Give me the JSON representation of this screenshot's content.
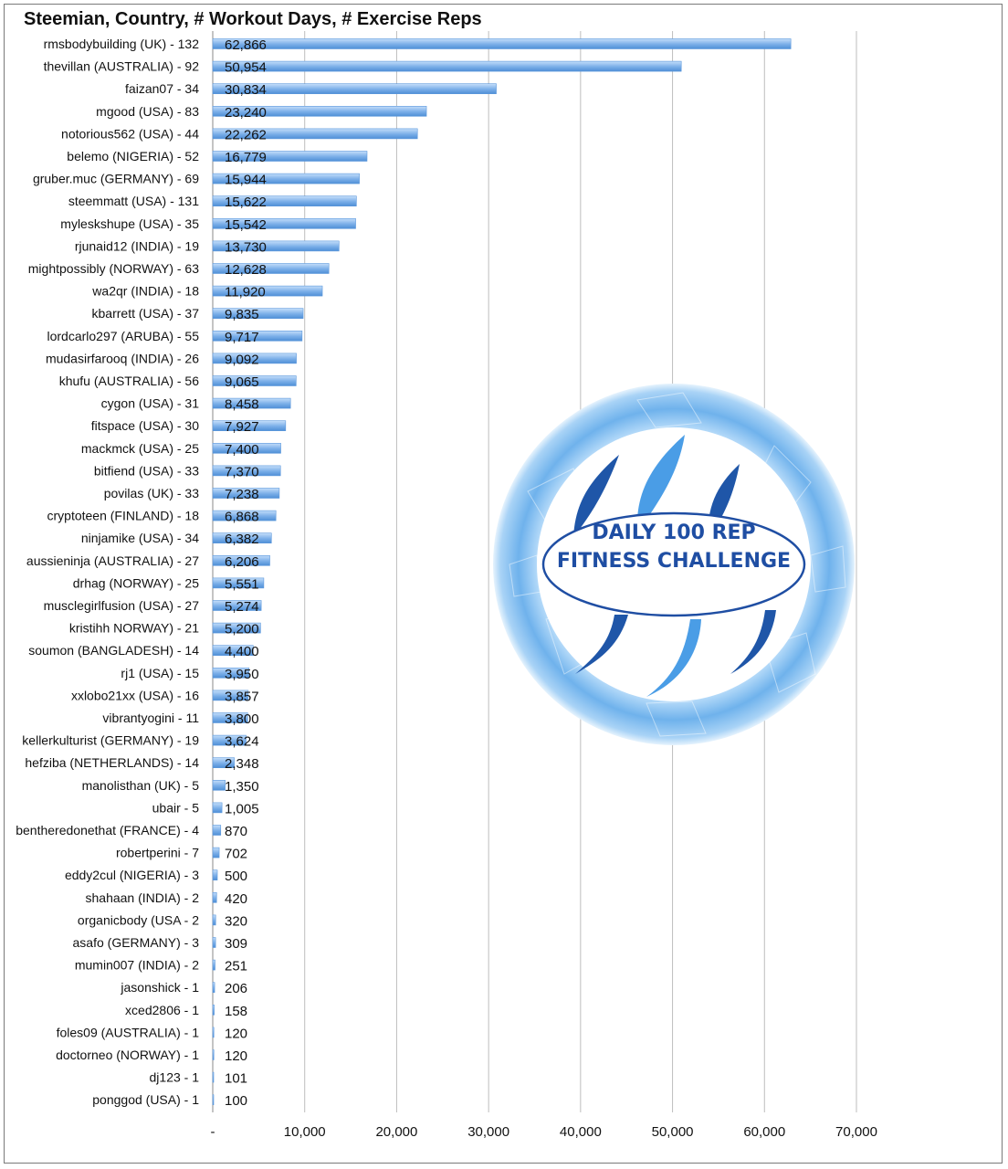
{
  "chart_data": {
    "type": "bar",
    "orientation": "horizontal",
    "title": "Steemian, Country, # Workout Days, # Exercise Reps",
    "xlabel": "",
    "ylabel": "",
    "xlim": [
      0,
      70000
    ],
    "x_ticks": [
      0,
      10000,
      20000,
      30000,
      40000,
      50000,
      60000,
      70000
    ],
    "x_tick_labels": [
      "-",
      "10,000",
      "20,000",
      "30,000",
      "40,000",
      "50,000",
      "60,000",
      "70,000"
    ],
    "grid": "vertical",
    "legend": "none",
    "bar_color": "#7aaee8",
    "categories": [
      "rmsbodybuilding (UK) - 132",
      "thevillan (AUSTRALIA) - 92",
      "faizan07 - 34",
      "mgood (USA) - 83",
      "notorious562 (USA) - 44",
      "belemo (NIGERIA) - 52",
      "gruber.muc (GERMANY) - 69",
      "steemmatt (USA) - 131",
      "myleskshupe (USA) - 35",
      "rjunaid12 (INDIA) - 19",
      "mightpossibly (NORWAY) - 63",
      "wa2qr (INDIA) - 18",
      "kbarrett (USA) - 37",
      "lordcarlo297 (ARUBA) - 55",
      "mudasirfarooq (INDIA) - 26",
      "khufu (AUSTRALIA) - 56",
      "cygon (USA) - 31",
      "fitspace (USA) - 30",
      "mackmck (USA) - 25",
      "bitfiend (USA) - 33",
      "povilas (UK) - 33",
      "cryptoteen (FINLAND) - 18",
      "ninjamike (USA) - 34",
      "aussieninja (AUSTRALIA) - 27",
      "drhag (NORWAY) - 25",
      "musclegirlfusion (USA) - 27",
      "kristihh NORWAY) - 21",
      "soumon (BANGLADESH) - 14",
      "rj1 (USA) - 15",
      "xxlobo21xx (USA) - 16",
      "vibrantyogini - 11",
      "kellerkulturist (GERMANY) - 19",
      "hefziba (NETHERLANDS) - 14",
      "manolisthan (UK) - 5",
      "ubair - 5",
      "bentheredonethat (FRANCE) - 4",
      "robertperini - 7",
      "eddy2cul (NIGERIA) - 3",
      "shahaan (INDIA) - 2",
      "organicbody (USA - 2",
      "asafo (GERMANY) - 3",
      "mumin007 (INDIA) - 2",
      "jasonshick  - 1",
      "xced2806 - 1",
      "foles09 (AUSTRALIA) - 1",
      "doctorneo (NORWAY) - 1",
      "dj123 - 1",
      "ponggod (USA) - 1"
    ],
    "values": [
      62866,
      50954,
      30834,
      23240,
      22262,
      16779,
      15944,
      15622,
      15542,
      13730,
      12628,
      11920,
      9835,
      9717,
      9092,
      9065,
      8458,
      7927,
      7400,
      7370,
      7238,
      6868,
      6382,
      6206,
      5551,
      5274,
      5200,
      4400,
      3950,
      3857,
      3800,
      3624,
      2348,
      1350,
      1005,
      870,
      702,
      500,
      420,
      320,
      309,
      251,
      206,
      158,
      120,
      120,
      101,
      100
    ],
    "data_labels": [
      "62,866",
      "50,954",
      "30,834",
      "23,240",
      "22,262",
      "16,779",
      "15,944",
      "15,622",
      "15,542",
      "13,730",
      "12,628",
      "11,920",
      "9,835",
      "9,717",
      "9,092",
      "9,065",
      "8,458",
      "7,927",
      "7,400",
      "7,370",
      "7,238",
      "6,868",
      "6,382",
      "6,206",
      "5,551",
      "5,274",
      "5,200",
      "4,400",
      "3,950",
      "3,857",
      "3,800",
      "3,624",
      "2,348",
      "1,350",
      "1,005",
      "870",
      "702",
      "500",
      "420",
      "320",
      "309",
      "251",
      "206",
      "158",
      "120",
      "120",
      "101",
      "100"
    ]
  },
  "emblem": {
    "line1": "DAILY 100 REP",
    "line2": "FITNESS CHALLENGE",
    "ring_color": "#6aaee8",
    "text_color": "#1f4ea3"
  }
}
